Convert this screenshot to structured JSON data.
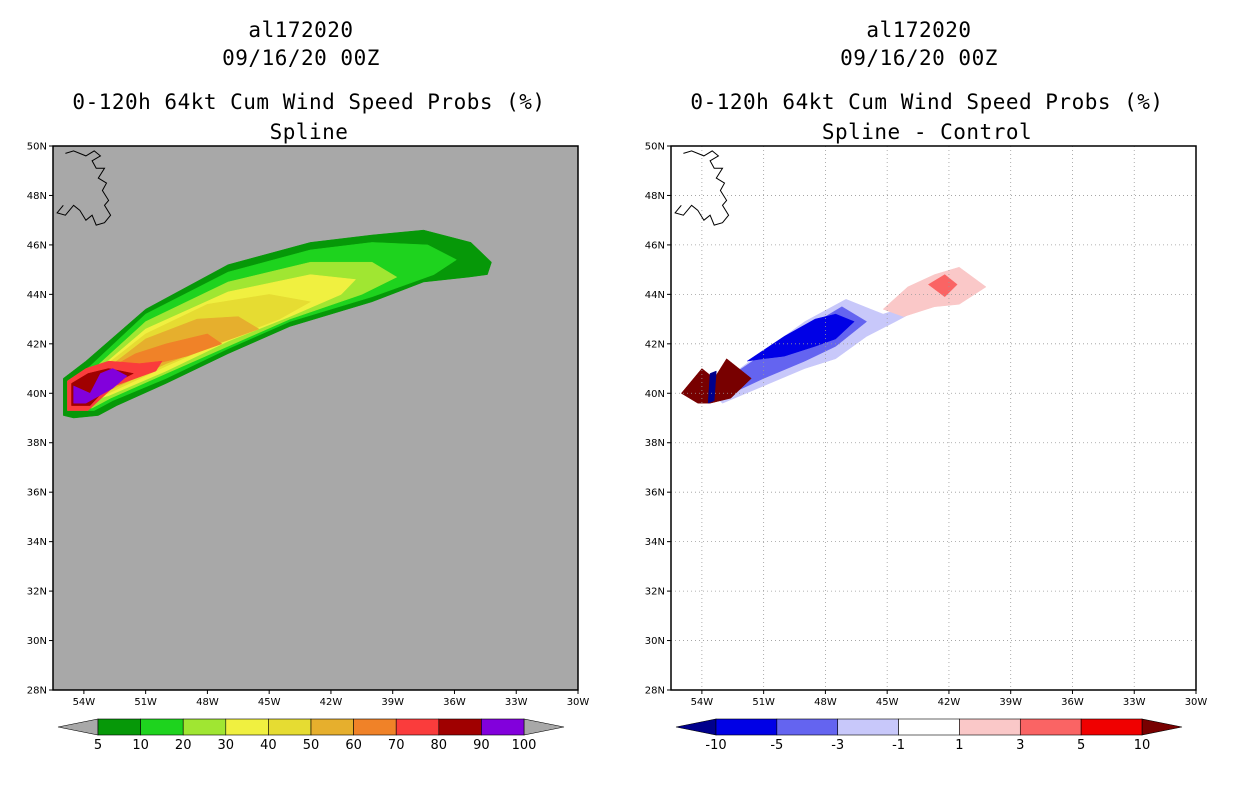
{
  "panels": [
    {
      "storm_id": "al172020",
      "datetime": "09/16/20 00Z",
      "title": "0-120h 64kt Cum Wind Speed Probs (%)",
      "subtitle": "Spline"
    },
    {
      "storm_id": "al172020",
      "datetime": "09/16/20 00Z",
      "title": "0-120h 64kt Cum Wind Speed Probs (%)",
      "subtitle": "Spline - Control"
    }
  ],
  "chart_data": [
    {
      "type": "heatmap",
      "title": "0-120h 64kt Cum Wind Speed Probs (%)",
      "subtitle": "Spline",
      "xlim": [
        -55.5,
        -30
      ],
      "ylim": [
        28,
        50
      ],
      "x_ticks": [
        -54,
        -51,
        -48,
        -45,
        -42,
        -39,
        -36,
        -33,
        -30
      ],
      "x_tick_labels": [
        "54W",
        "51W",
        "48W",
        "45W",
        "42W",
        "39W",
        "36W",
        "33W",
        "30W"
      ],
      "y_ticks": [
        28,
        30,
        32,
        34,
        36,
        38,
        40,
        42,
        44,
        46,
        48,
        50
      ],
      "y_tick_labels": [
        "28N",
        "30N",
        "32N",
        "34N",
        "36N",
        "38N",
        "40N",
        "42N",
        "44N",
        "46N",
        "48N",
        "50N"
      ],
      "background_color": "#a8a8a8",
      "colorbar": {
        "levels": [
          "5",
          "10",
          "20",
          "30",
          "40",
          "50",
          "60",
          "70",
          "80",
          "90",
          "100"
        ],
        "colors": [
          "#069808",
          "#1ed31e",
          "#a0e632",
          "#f0f040",
          "#e6dc32",
          "#e6af2d",
          "#f08228",
          "#fa3c3c",
          "#a00000",
          "#8200dc"
        ],
        "end_colors": [
          "#a8a8a8",
          "#a8a8a8"
        ]
      },
      "bands": [
        {
          "range": "5-10",
          "color": "#069808",
          "outline": [
            [
              -55,
              39.1
            ],
            [
              -55,
              40.6
            ],
            [
              -53.9,
              41.3
            ],
            [
              -51,
              43.4
            ],
            [
              -47,
              45.2
            ],
            [
              -43,
              46.1
            ],
            [
              -40,
              46.4
            ],
            [
              -37.5,
              46.6
            ],
            [
              -35.2,
              46.1
            ],
            [
              -34.2,
              45.3
            ],
            [
              -34.4,
              44.8
            ],
            [
              -35.3,
              44.7
            ],
            [
              -37.5,
              44.5
            ],
            [
              -40,
              43.7
            ],
            [
              -44,
              42.7
            ],
            [
              -47,
              41.6
            ],
            [
              -50,
              40.4
            ],
            [
              -52.4,
              39.5
            ],
            [
              -53.3,
              39.1
            ],
            [
              -54.5,
              39.0
            ]
          ]
        },
        {
          "range": "10-20",
          "color": "#1ed31e",
          "outline": [
            [
              -54.8,
              39.3
            ],
            [
              -54.8,
              40.5
            ],
            [
              -53.7,
              41.1
            ],
            [
              -51,
              43.2
            ],
            [
              -47,
              44.9
            ],
            [
              -43,
              45.8
            ],
            [
              -40,
              46.1
            ],
            [
              -37.3,
              46.0
            ],
            [
              -35.9,
              45.4
            ],
            [
              -37,
              44.8
            ],
            [
              -40,
              43.9
            ],
            [
              -44,
              42.9
            ],
            [
              -47,
              41.8
            ],
            [
              -50,
              40.6
            ],
            [
              -52.6,
              39.7
            ],
            [
              -53.5,
              39.3
            ]
          ]
        },
        {
          "range": "20-30",
          "color": "#a0e632",
          "outline": [
            [
              -54.6,
              39.4
            ],
            [
              -54.6,
              40.4
            ],
            [
              -53.5,
              41.0
            ],
            [
              -51,
              42.9
            ],
            [
              -47,
              44.5
            ],
            [
              -43,
              45.3
            ],
            [
              -40,
              45.3
            ],
            [
              -38.8,
              44.7
            ],
            [
              -40.5,
              44.0
            ],
            [
              -44,
              43.0
            ],
            [
              -47,
              41.9
            ],
            [
              -50,
              40.8
            ],
            [
              -52.7,
              39.8
            ],
            [
              -53.6,
              39.4
            ]
          ]
        },
        {
          "range": "30-40",
          "color": "#f0f040",
          "outline": [
            [
              -54.5,
              39.5
            ],
            [
              -54.5,
              40.4
            ],
            [
              -53.4,
              40.9
            ],
            [
              -51,
              42.6
            ],
            [
              -47,
              44.1
            ],
            [
              -43,
              44.8
            ],
            [
              -40.8,
              44.6
            ],
            [
              -41.5,
              44.0
            ],
            [
              -44,
              43.1
            ],
            [
              -47,
              42.1
            ],
            [
              -50,
              40.9
            ],
            [
              -52.8,
              39.9
            ]
          ]
        },
        {
          "range": "40-50",
          "color": "#e6dc32",
          "outline": [
            [
              -54.4,
              39.6
            ],
            [
              -54.4,
              40.3
            ],
            [
              -53.3,
              40.9
            ],
            [
              -51,
              42.4
            ],
            [
              -48,
              43.6
            ],
            [
              -45,
              44.0
            ],
            [
              -43,
              43.7
            ],
            [
              -44.5,
              43.0
            ],
            [
              -47,
              42.2
            ],
            [
              -50,
              41.1
            ],
            [
              -52.8,
              40.0
            ]
          ]
        },
        {
          "range": "50-60",
          "color": "#e6af2d",
          "outline": [
            [
              -54.3,
              39.6
            ],
            [
              -54.3,
              40.3
            ],
            [
              -53.2,
              40.8
            ],
            [
              -51,
              42.2
            ],
            [
              -48.5,
              43.0
            ],
            [
              -46.5,
              43.1
            ],
            [
              -45.5,
              42.6
            ],
            [
              -47.5,
              42.0
            ],
            [
              -50,
              41.2
            ],
            [
              -52.8,
              40.1
            ]
          ]
        },
        {
          "range": "60-70",
          "color": "#f08228",
          "outline": [
            [
              -54.2,
              39.7
            ],
            [
              -54.2,
              40.3
            ],
            [
              -53.2,
              40.8
            ],
            [
              -51.5,
              41.6
            ],
            [
              -50,
              42.0
            ],
            [
              -48,
              42.4
            ],
            [
              -47.3,
              42.0
            ],
            [
              -49,
              41.5
            ],
            [
              -51,
              41.1
            ],
            [
              -52.8,
              40.2
            ]
          ]
        },
        {
          "range": "70-80",
          "color": "#fa3c3c",
          "outline": [
            [
              -54.8,
              39.3
            ],
            [
              -54.8,
              40.5
            ],
            [
              -53.9,
              41.0
            ],
            [
              -52.8,
              41.3
            ],
            [
              -51.3,
              41.2
            ],
            [
              -50.2,
              41.3
            ],
            [
              -50.5,
              40.9
            ],
            [
              -52.5,
              40.3
            ],
            [
              -53.8,
              39.3
            ]
          ]
        },
        {
          "range": "80-90",
          "color": "#a00000",
          "outline": [
            [
              -54.6,
              39.5
            ],
            [
              -54.6,
              40.4
            ],
            [
              -53.8,
              40.8
            ],
            [
              -52.8,
              41.0
            ],
            [
              -51.6,
              40.8
            ],
            [
              -52.8,
              40.3
            ],
            [
              -53.7,
              39.5
            ]
          ]
        },
        {
          "range": "90-100",
          "color": "#8200dc",
          "outline": [
            [
              -54.5,
              39.6
            ],
            [
              -54.5,
              40.3
            ],
            [
              -53.7,
              40.0
            ],
            [
              -53.2,
              40.8
            ],
            [
              -52.6,
              41.0
            ],
            [
              -51.9,
              40.7
            ],
            [
              -52.6,
              40.2
            ],
            [
              -53.9,
              39.6
            ]
          ]
        }
      ]
    },
    {
      "type": "heatmap",
      "title": "0-120h 64kt Cum Wind Speed Probs (%)",
      "subtitle": "Spline - Control",
      "xlim": [
        -55.5,
        -30
      ],
      "ylim": [
        28,
        50
      ],
      "x_ticks": [
        -54,
        -51,
        -48,
        -45,
        -42,
        -39,
        -36,
        -33,
        -30
      ],
      "x_tick_labels": [
        "54W",
        "51W",
        "48W",
        "45W",
        "42W",
        "39W",
        "36W",
        "33W",
        "30W"
      ],
      "y_ticks": [
        28,
        30,
        32,
        34,
        36,
        38,
        40,
        42,
        44,
        46,
        48,
        50
      ],
      "y_tick_labels": [
        "28N",
        "30N",
        "32N",
        "34N",
        "36N",
        "38N",
        "40N",
        "42N",
        "44N",
        "46N",
        "48N",
        "50N"
      ],
      "background_color": "#ffffff",
      "grid": true,
      "colorbar": {
        "levels": [
          "-10",
          "-5",
          "-3",
          "-1",
          "1",
          "3",
          "5",
          "10"
        ],
        "colors": [
          "#0000e6",
          "#6464f0",
          "#c8c8fa",
          "#ffffff",
          "#fac8c8",
          "#fa6464",
          "#f00000"
        ],
        "end_colors": [
          "#00008c",
          "#780000"
        ]
      },
      "bands": [
        {
          "range": "-3 to -1",
          "color": "#c8c8fa",
          "outline": [
            [
              -53.8,
              40.2
            ],
            [
              -52.8,
              40.6
            ],
            [
              -51,
              41.7
            ],
            [
              -49,
              42.9
            ],
            [
              -47,
              43.8
            ],
            [
              -45.8,
              43.4
            ],
            [
              -45.2,
              43.2
            ],
            [
              -44.4,
              43.4
            ],
            [
              -43.7,
              43.3
            ],
            [
              -44.6,
              42.9
            ],
            [
              -46,
              42.3
            ],
            [
              -47.5,
              41.4
            ],
            [
              -49,
              41.0
            ],
            [
              -51,
              40.3
            ],
            [
              -53,
              39.6
            ]
          ]
        },
        {
          "range": "-5 to -3",
          "color": "#6464f0",
          "outline": [
            [
              -53.6,
              40.3
            ],
            [
              -52.6,
              40.7
            ],
            [
              -51,
              41.6
            ],
            [
              -49,
              42.6
            ],
            [
              -47.2,
              43.5
            ],
            [
              -46,
              42.9
            ],
            [
              -47.5,
              41.9
            ],
            [
              -49,
              41.3
            ],
            [
              -51,
              40.6
            ],
            [
              -52.8,
              39.9
            ]
          ]
        },
        {
          "range": "-10 to -5",
          "color": "#0000e6",
          "outline": [
            [
              -51.8,
              41.3
            ],
            [
              -50,
              42.3
            ],
            [
              -48.5,
              43.0
            ],
            [
              -47.5,
              43.2
            ],
            [
              -46.6,
              42.9
            ],
            [
              -47.5,
              42.2
            ],
            [
              -48.5,
              41.9
            ],
            [
              -50,
              41.5
            ],
            [
              -51,
              41.4
            ]
          ]
        },
        {
          "range": "1 to 3",
          "color": "#fac8c8",
          "outline": [
            [
              -45.2,
              43.4
            ],
            [
              -44,
              44.3
            ],
            [
              -42.7,
              44.8
            ],
            [
              -41.5,
              45.1
            ],
            [
              -40.2,
              44.3
            ],
            [
              -41.5,
              43.6
            ],
            [
              -42.7,
              43.5
            ],
            [
              -44.2,
              43.1
            ]
          ]
        },
        {
          "range": "3 to 5",
          "color": "#fa6464",
          "outline": [
            [
              -43.0,
              44.4
            ],
            [
              -42.2,
              44.8
            ],
            [
              -41.6,
              44.4
            ],
            [
              -42.2,
              43.9
            ]
          ]
        },
        {
          "range": "> 10",
          "color": "#780000",
          "outline": [
            [
              -55,
              40.0
            ],
            [
              -54,
              41.0
            ],
            [
              -53.4,
              40.6
            ],
            [
              -52.8,
              41.4
            ],
            [
              -51.6,
              40.6
            ],
            [
              -52.6,
              39.8
            ],
            [
              -53.6,
              39.6
            ],
            [
              -54.2,
              39.6
            ]
          ]
        },
        {
          "range": "< -10",
          "color": "#00008c",
          "outline": [
            [
              -53.6,
              40.8
            ],
            [
              -53.3,
              40.9
            ],
            [
              -53.4,
              39.7
            ],
            [
              -53.7,
              39.6
            ]
          ]
        }
      ]
    }
  ]
}
